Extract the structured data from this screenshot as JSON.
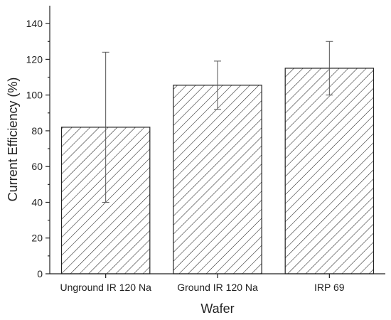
{
  "chart_data": {
    "type": "bar",
    "title": "",
    "xlabel": "Wafer",
    "ylabel": "Current Efficiency (%)",
    "categories": [
      "Unground IR 120 Na",
      "Ground IR 120 Na",
      "IRP 69"
    ],
    "values": [
      82,
      105.5,
      115
    ],
    "error_bars": [
      {
        "low": 40,
        "high": 124
      },
      {
        "low": 92,
        "high": 119
      },
      {
        "low": 100,
        "high": 130
      }
    ],
    "ylim": [
      0,
      150
    ],
    "yticks": [
      0,
      20,
      40,
      60,
      80,
      100,
      120,
      140
    ],
    "grid": false,
    "legend": "none",
    "bar_fill": "hatched diagonal",
    "colors": {
      "stroke": "#222222",
      "error": "#555555",
      "background": "#ffffff"
    }
  }
}
